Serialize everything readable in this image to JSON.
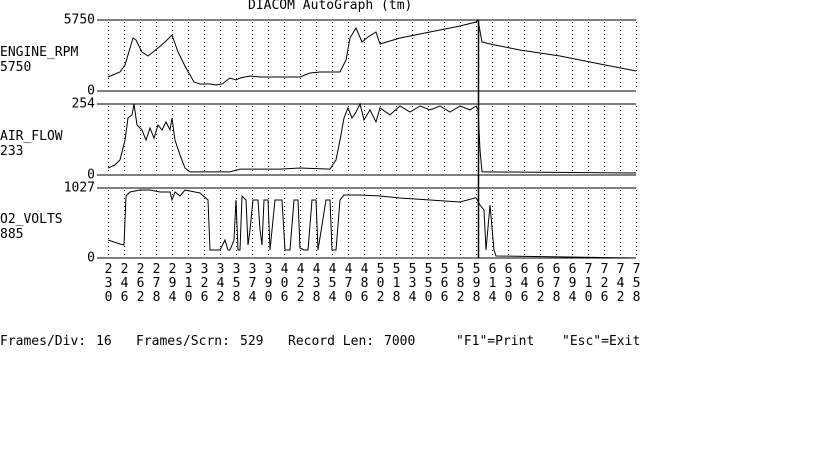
{
  "chart_data": {
    "type": "line",
    "title": "DIACOM AutoGraph (tm)",
    "xlim": [
      230,
      758
    ],
    "xticks": [
      230,
      246,
      262,
      278,
      294,
      310,
      326,
      342,
      358,
      374,
      390,
      406,
      422,
      438,
      454,
      470,
      486,
      502,
      518,
      534,
      550,
      566,
      582,
      598,
      614,
      630,
      646,
      662,
      678,
      694,
      710,
      726,
      742,
      758
    ],
    "grid": true,
    "cursor": 600,
    "series": [
      {
        "name": "ENGINE_RPM",
        "readout": "5750",
        "color": "#000000",
        "ylim": [
          0,
          5750
        ],
        "yticks": [
          0,
          5750
        ],
        "x": [
          230,
          242,
          247,
          255,
          258,
          264,
          270,
          280,
          287,
          294,
          300,
          308,
          316,
          322,
          332,
          338,
          344,
          352,
          358,
          362,
          372,
          382,
          422,
          432,
          442,
          462,
          468,
          472,
          478,
          484,
          490,
          498,
          502,
          522,
          552,
          582,
          598,
          600,
          604,
          612,
          642,
          682,
          722,
          758
        ],
        "values": [
          1134,
          1539,
          2106,
          4293,
          4131,
          3159,
          2835,
          3483,
          3969,
          4536,
          3159,
          1863,
          729,
          567,
          567,
          486,
          567,
          1053,
          891,
          1053,
          1215,
          1134,
          1134,
          1458,
          1539,
          1539,
          2511,
          4293,
          5103,
          3969,
          4374,
          4779,
          3807,
          4293,
          4779,
          5265,
          5589,
          5750,
          3969,
          3807,
          3321,
          2835,
          2187,
          1620
        ]
      },
      {
        "name": "AIR_FLOW",
        "readout": "233",
        "color": "#000000",
        "ylim": [
          0,
          254
        ],
        "yticks": [
          0,
          254
        ],
        "x": [
          230,
          237,
          242,
          247,
          250,
          254,
          256,
          259,
          264,
          268,
          272,
          276,
          280,
          284,
          288,
          292,
          294,
          297,
          302,
          307,
          312,
          322,
          352,
          362,
          402,
          422,
          452,
          458,
          462,
          466,
          470,
          474,
          478,
          482,
          486,
          492,
          498,
          502,
          512,
          522,
          532,
          542,
          552,
          562,
          572,
          582,
          592,
          598,
          600,
          602,
          604,
          608,
          758
        ],
        "values": [
          25,
          36,
          54,
          125,
          204,
          215,
          254,
          179,
          161,
          125,
          168,
          132,
          179,
          161,
          190,
          161,
          204,
          125,
          72,
          25,
          11,
          11,
          11,
          21,
          21,
          25,
          21,
          54,
          125,
          204,
          240,
          204,
          225,
          254,
          197,
          233,
          190,
          240,
          215,
          247,
          225,
          247,
          233,
          247,
          225,
          247,
          233,
          247,
          233,
          90,
          11,
          11,
          7
        ]
      },
      {
        "name": "O2_VOLTS",
        "readout": "885",
        "color": "#000000",
        "ylim": [
          0,
          1027
        ],
        "yticks": [
          0,
          1027
        ],
        "x": [
          230,
          242,
          246,
          248,
          252,
          262,
          272,
          282,
          292,
          294,
          297,
          302,
          307,
          322,
          330,
          332,
          342,
          347,
          350,
          352,
          356,
          358,
          360,
          362,
          364,
          368,
          370,
          372,
          375,
          380,
          382,
          384,
          386,
          390,
          392,
          394,
          397,
          404,
          407,
          412,
          416,
          420,
          422,
          426,
          430,
          434,
          438,
          440,
          448,
          452,
          454,
          458,
          462,
          466,
          482,
          502,
          522,
          552,
          582,
          598,
          602,
          606,
          608,
          612,
          616,
          618,
          758
        ],
        "values": [
          264,
          205,
          191,
          910,
          968,
          998,
          998,
          968,
          968,
          851,
          968,
          910,
          998,
          954,
          851,
          117,
          117,
          264,
          117,
          117,
          264,
          851,
          117,
          117,
          910,
          851,
          191,
          411,
          851,
          851,
          411,
          191,
          851,
          851,
          117,
          411,
          851,
          851,
          117,
          117,
          851,
          851,
          147,
          117,
          117,
          851,
          851,
          117,
          851,
          851,
          117,
          117,
          851,
          924,
          924,
          910,
          880,
          851,
          822,
          885,
          778,
          704,
          117,
          778,
          117,
          29,
          0
        ]
      }
    ]
  },
  "footer": {
    "items": [
      {
        "label": "Frames/Div:",
        "value": 16
      },
      {
        "label": "Frames/Scrn:",
        "value": 529
      },
      {
        "label": "Record Len:",
        "value": 7000
      }
    ],
    "keys": [
      "\"F1\"=Print",
      "\"Esc\"=Exit"
    ]
  }
}
